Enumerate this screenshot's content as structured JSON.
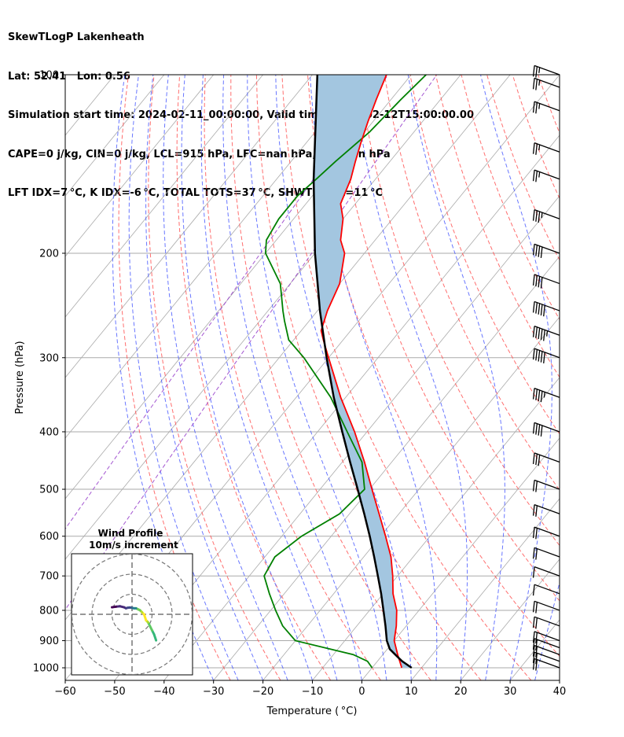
{
  "header": {
    "line1": "SkewTLogP Lakenheath",
    "line2": "Lat: 52.41   Lon: 0.56",
    "line3": "Simulation start time: 2024-02-11_00:00:00, Valid time: 2024-02-12T15:00:00.00",
    "line4": "CAPE=0 j/kg, CIN=0 j/kg, LCL=915 hPa, LFC=nan hPa, EQ=nan hPa",
    "line5": "LFT IDX=7 °C, K IDX=-6 °C, TOTAL TOTS=37 °C, SHWTR_IDX=11 °C"
  },
  "colors": {
    "temperature": "#ff0000",
    "dewpoint": "#008000",
    "parcel": "#000000",
    "cape_fill": "#a3c6e0",
    "dry_adiabat": "#ff5555",
    "moist_adiabat": "#4455ff",
    "isotherm": "#aaaaaa",
    "mixing_ratio": "#9944cc"
  },
  "chart_data": {
    "type": "line",
    "subtype": "skew-t log-p",
    "xlabel": "Temperature ( °C)",
    "ylabel": "Pressure (hPa)",
    "xlim": [
      -60,
      40
    ],
    "ylim": [
      1050,
      100
    ],
    "x_ticks": [
      -60,
      -50,
      -40,
      -30,
      -20,
      -10,
      0,
      10,
      20,
      30,
      40
    ],
    "y_ticks": [
      1000,
      900,
      800,
      700,
      600,
      500,
      400,
      300,
      200,
      100
    ],
    "y_scale": "log",
    "grid": true,
    "series": [
      {
        "key": "temperature",
        "p": [
          1000,
          950,
          900,
          850,
          800,
          750,
          700,
          650,
          600,
          550,
          500,
          450,
          400,
          350,
          300,
          280,
          270,
          250,
          225,
          200,
          190,
          175,
          165,
          150,
          140,
          130,
          120,
          110,
          100
        ],
        "t": [
          6,
          3,
          0,
          -2,
          -4.5,
          -8,
          -11,
          -14.5,
          -19,
          -24,
          -29.5,
          -35.5,
          -42.5,
          -51,
          -60,
          -64,
          -66,
          -68,
          -70,
          -74,
          -77,
          -80,
          -83,
          -85,
          -87,
          -89,
          -91,
          -93,
          -95
        ]
      },
      {
        "key": "dewpoint",
        "p": [
          1000,
          975,
          950,
          900,
          850,
          800,
          750,
          700,
          650,
          600,
          550,
          500,
          450,
          400,
          350,
          300,
          280,
          260,
          250,
          225,
          200,
          190,
          175,
          160,
          150,
          140,
          125,
          110,
          100
        ],
        "t": [
          0,
          -2,
          -6,
          -20,
          -25,
          -29,
          -33,
          -37,
          -38,
          -36,
          -32,
          -31,
          -36,
          -44,
          -53,
          -65,
          -71,
          -75,
          -77,
          -82,
          -90,
          -92,
          -93,
          -93,
          -92,
          -91,
          -89,
          -88,
          -87
        ]
      },
      {
        "key": "parcel",
        "p": [
          1000,
          975,
          950,
          930,
          915,
          900,
          850,
          800,
          750,
          700,
          650,
          600,
          550,
          500,
          450,
          400,
          350,
          300,
          250,
          200,
          150,
          100
        ],
        "t": [
          8,
          5,
          2.5,
          0.5,
          -0.5,
          -1.5,
          -4.2,
          -7.2,
          -10.4,
          -14,
          -17.9,
          -22.2,
          -27,
          -32.4,
          -38.4,
          -45,
          -52.4,
          -60.4,
          -69.5,
          -80,
          -92.5,
          -109
        ]
      }
    ],
    "wind_barbs": [
      {
        "p": 1000,
        "speed_kt": 20
      },
      {
        "p": 975,
        "speed_kt": 20
      },
      {
        "p": 950,
        "speed_kt": 20
      },
      {
        "p": 925,
        "speed_kt": 20
      },
      {
        "p": 900,
        "speed_kt": 20
      },
      {
        "p": 850,
        "speed_kt": 20
      },
      {
        "p": 800,
        "speed_kt": 20
      },
      {
        "p": 750,
        "speed_kt": 10
      },
      {
        "p": 700,
        "speed_kt": 10
      },
      {
        "p": 650,
        "speed_kt": 20
      },
      {
        "p": 600,
        "speed_kt": 20
      },
      {
        "p": 550,
        "speed_kt": 20
      },
      {
        "p": 500,
        "speed_kt": 20
      },
      {
        "p": 450,
        "speed_kt": 30
      },
      {
        "p": 400,
        "speed_kt": 40
      },
      {
        "p": 350,
        "speed_kt": 45
      },
      {
        "p": 300,
        "speed_kt": 50
      },
      {
        "p": 275,
        "speed_kt": 55
      },
      {
        "p": 250,
        "speed_kt": 50
      },
      {
        "p": 225,
        "speed_kt": 40
      },
      {
        "p": 200,
        "speed_kt": 40
      },
      {
        "p": 175,
        "speed_kt": 35
      },
      {
        "p": 150,
        "speed_kt": 25
      },
      {
        "p": 135,
        "speed_kt": 25
      },
      {
        "p": 115,
        "speed_kt": 25
      },
      {
        "p": 105,
        "speed_kt": 25
      },
      {
        "p": 100,
        "speed_kt": 25
      }
    ],
    "hodograph": {
      "title": "Wind Profile",
      "subtitle": "10m/s increment",
      "rings_ms": [
        10,
        20,
        30
      ],
      "u": [
        12,
        11,
        10,
        9,
        8,
        7,
        6,
        5,
        4,
        3,
        2,
        1,
        0,
        -1,
        -2,
        -3,
        -4,
        -6,
        -8,
        -10
      ],
      "v": [
        -13,
        -10,
        -8,
        -6,
        -4,
        -3,
        0,
        1,
        2,
        2.5,
        3,
        3,
        3.2,
        3.4,
        3.3,
        3,
        3.5,
        4,
        3.8,
        3.5
      ],
      "colormap": "viridis"
    }
  }
}
